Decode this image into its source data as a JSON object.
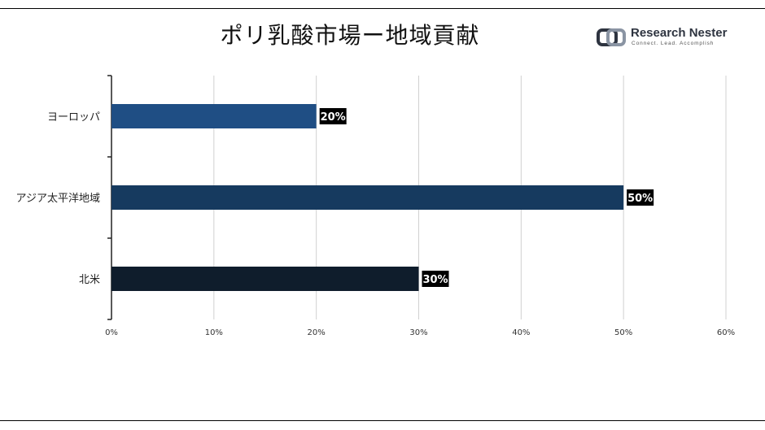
{
  "title": "ポリ乳酸市場ー地域貢献",
  "logo": {
    "name": "Research Nester",
    "tagline": "Connect. Lead. Accomplish"
  },
  "chart_data": {
    "type": "bar",
    "orientation": "horizontal",
    "categories": [
      "ヨーロッパ",
      "アジア太平洋地域",
      "北米"
    ],
    "values": [
      20,
      50,
      30
    ],
    "data_labels": [
      "20%",
      "50%",
      "30%"
    ],
    "bar_colors": [
      "#1f4e84",
      "#163a5f",
      "#0f1d2c"
    ],
    "xlim": [
      0,
      60
    ],
    "xticks": [
      0,
      10,
      20,
      30,
      40,
      50,
      60
    ],
    "xtick_labels": [
      "0%",
      "10%",
      "20%",
      "30%",
      "40%",
      "50%",
      "60%"
    ],
    "grid": "vertical",
    "legend": "none"
  }
}
